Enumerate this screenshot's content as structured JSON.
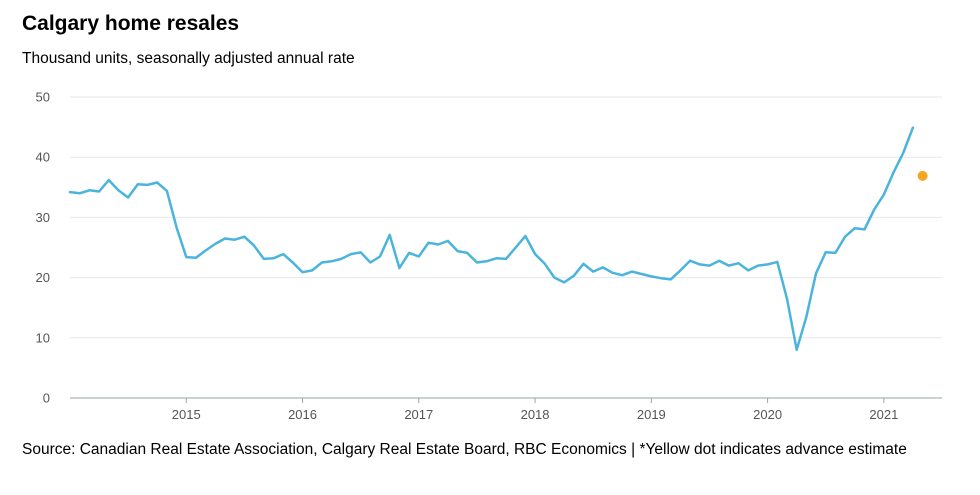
{
  "title": "Calgary home resales",
  "subtitle": "Thousand units, seasonally adjusted annual rate",
  "source": "Source: Canadian Real Estate Association, Calgary Real Estate Board, RBC Economics | *Yellow dot indicates advance estimate",
  "colors": {
    "line": "#4ab4dd",
    "estimate": "#f5a623",
    "grid": "#e3e8ec",
    "axis": "#9aa4aa"
  },
  "chart_data": {
    "type": "line",
    "title": "Calgary home resales",
    "subtitle": "Thousand units, seasonally adjusted annual rate",
    "xlabel": "",
    "ylabel": "",
    "ylim": [
      0,
      50
    ],
    "yticks": [
      0,
      10,
      20,
      30,
      40,
      50
    ],
    "xlim": [
      2014.0,
      2021.5
    ],
    "xtick_labels": [
      "2015",
      "2016",
      "2017",
      "2018",
      "2019",
      "2020",
      "2021"
    ],
    "grid": true,
    "x": [
      "2014-01",
      "2014-02",
      "2014-03",
      "2014-04",
      "2014-05",
      "2014-06",
      "2014-07",
      "2014-08",
      "2014-09",
      "2014-10",
      "2014-11",
      "2014-12",
      "2015-01",
      "2015-02",
      "2015-03",
      "2015-04",
      "2015-05",
      "2015-06",
      "2015-07",
      "2015-08",
      "2015-09",
      "2015-10",
      "2015-11",
      "2015-12",
      "2016-01",
      "2016-02",
      "2016-03",
      "2016-04",
      "2016-05",
      "2016-06",
      "2016-07",
      "2016-08",
      "2016-09",
      "2016-10",
      "2016-11",
      "2016-12",
      "2017-01",
      "2017-02",
      "2017-03",
      "2017-04",
      "2017-05",
      "2017-06",
      "2017-07",
      "2017-08",
      "2017-09",
      "2017-10",
      "2017-11",
      "2017-12",
      "2018-01",
      "2018-02",
      "2018-03",
      "2018-04",
      "2018-05",
      "2018-06",
      "2018-07",
      "2018-08",
      "2018-09",
      "2018-10",
      "2018-11",
      "2018-12",
      "2019-01",
      "2019-02",
      "2019-03",
      "2019-04",
      "2019-05",
      "2019-06",
      "2019-07",
      "2019-08",
      "2019-09",
      "2019-10",
      "2019-11",
      "2019-12",
      "2020-01",
      "2020-02",
      "2020-03",
      "2020-04",
      "2020-05",
      "2020-06",
      "2020-07",
      "2020-08",
      "2020-09",
      "2020-10",
      "2020-11",
      "2020-12",
      "2021-01",
      "2021-02",
      "2021-03",
      "2021-04"
    ],
    "series": [
      {
        "values": [
          34.2,
          34.0,
          34.5,
          34.3,
          36.2,
          34.5,
          33.3,
          35.5,
          35.4,
          35.8,
          34.4,
          28.3,
          23.4,
          23.3,
          24.5,
          25.6,
          26.5,
          26.3,
          26.8,
          25.3,
          23.1,
          23.2,
          23.9,
          22.5,
          20.9,
          21.2,
          22.5,
          22.7,
          23.1,
          23.9,
          24.2,
          22.5,
          23.5,
          27.1,
          21.6,
          24.1,
          23.5,
          25.8,
          25.5,
          26.1,
          24.4,
          24.1,
          22.5,
          22.7,
          23.2,
          23.1,
          25.0,
          26.9,
          23.9,
          22.3,
          20.0,
          19.2,
          20.3,
          22.3,
          21.0,
          21.7,
          20.8,
          20.4,
          21.0,
          20.6,
          20.2,
          19.9,
          19.7,
          21.2,
          22.8,
          22.2,
          22.0,
          22.8,
          22.0,
          22.4,
          21.2,
          22.0,
          22.2,
          22.6,
          16.5,
          8.0,
          13.5,
          20.7,
          24.2,
          24.1,
          26.8,
          28.2,
          28.0,
          31.3,
          33.8,
          37.5,
          40.7,
          44.9
        ]
      }
    ],
    "advance_estimate": {
      "x": "2021-05",
      "value": 36.9
    }
  }
}
